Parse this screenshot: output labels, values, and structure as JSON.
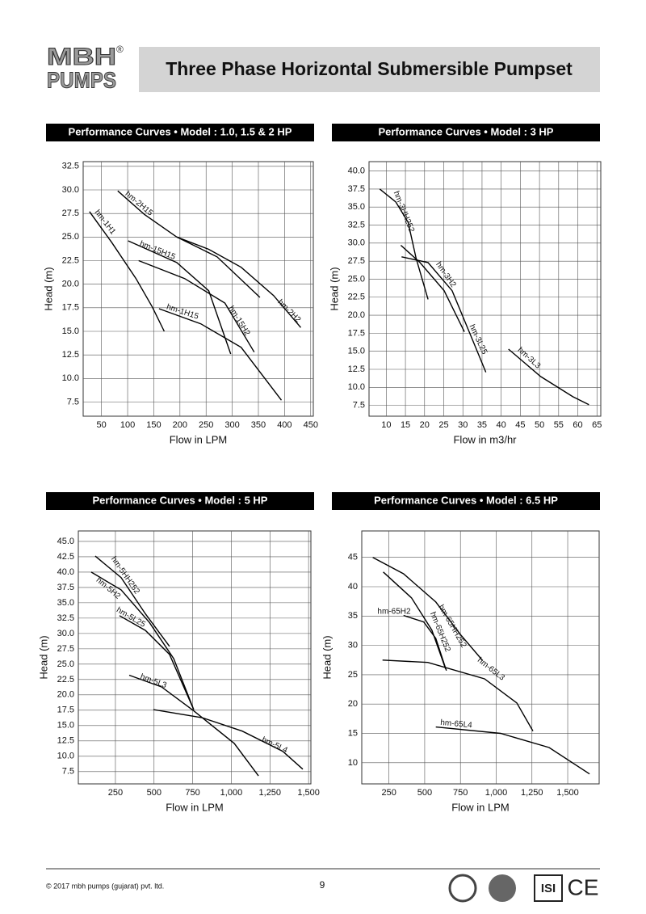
{
  "header": {
    "logo_top": "MBH",
    "logo_bottom": "PUMPS",
    "registered": "®",
    "title": "Three Phase Horizontal Submersible Pumpset"
  },
  "chart_data": [
    {
      "type": "line",
      "title": "Performance Curves • Model : 1.0, 1.5 & 2 HP",
      "x_label": "Flow in LPM",
      "y_label": "Head (m)",
      "grid": true,
      "color": "#000000",
      "xlim": [
        15,
        455
      ],
      "ylim": [
        6,
        33
      ],
      "xticks": [
        50,
        100,
        150,
        200,
        250,
        300,
        350,
        400,
        450
      ],
      "yticks": [
        7.5,
        {
          "value": 10,
          "label": "10.0"
        },
        12.5,
        {
          "value": 15,
          "label": "15.0"
        },
        17.5,
        {
          "value": 20,
          "label": "20.0"
        },
        22.5,
        {
          "value": 25,
          "label": "25.0"
        },
        27.5,
        {
          "value": 30,
          "label": "30.0"
        },
        32.5
      ],
      "series": [
        {
          "name": "hm-1H1",
          "x": [
            27,
            70,
            116,
            147,
            170
          ],
          "values": [
            27.7,
            24.4,
            20.6,
            17.6,
            15.0
          ]
        },
        {
          "name": "hm-2H15",
          "x": [
            81,
            132,
            194,
            271,
            353
          ],
          "values": [
            29.9,
            27.4,
            25.0,
            22.9,
            18.6
          ]
        },
        {
          "name": "hm-2H2",
          "x": [
            194,
            255,
            317,
            379,
            431
          ],
          "values": [
            25.0,
            23.7,
            21.8,
            18.8,
            15.4
          ]
        },
        {
          "name": "hm-15H15",
          "x": [
            101,
            194,
            255,
            297
          ],
          "values": [
            24.6,
            22.3,
            19.3,
            12.6
          ]
        },
        {
          "name": "hm-15H2",
          "x": [
            121,
            209,
            286,
            342
          ],
          "values": [
            22.5,
            20.6,
            18.0,
            12.8
          ]
        },
        {
          "name": "hm-1H15",
          "x": [
            160,
            240,
            317,
            394
          ],
          "values": [
            17.4,
            15.8,
            13.3,
            7.7
          ]
        }
      ]
    },
    {
      "type": "line",
      "title": "Performance Curves • Model : 3 HP",
      "x_label": "Flow in m3/hr",
      "y_label": "Head (m)",
      "grid": true,
      "color": "#000000",
      "xlim": [
        5.5,
        66
      ],
      "ylim": [
        6,
        41.3
      ],
      "xticks": [
        10,
        15,
        20,
        25,
        30,
        35,
        40,
        45,
        50,
        55,
        60,
        65
      ],
      "yticks": [
        7.5,
        {
          "value": 10,
          "label": "10.0"
        },
        12.5,
        {
          "value": 15,
          "label": "15.0"
        },
        17.5,
        {
          "value": 20,
          "label": "20.0"
        },
        22.5,
        {
          "value": 25,
          "label": "25.0"
        },
        27.5,
        {
          "value": 30,
          "label": "30.0"
        },
        32.5,
        {
          "value": 35,
          "label": "35.0"
        },
        37.5,
        {
          "value": 40,
          "label": "40.0"
        }
      ],
      "series": [
        {
          "name": "hm-3HH252",
          "x": [
            8.3,
            12.5,
            15.7,
            17.8,
            20.9
          ],
          "values": [
            37.5,
            35.7,
            32.9,
            27.9,
            22.2
          ]
        },
        {
          "name": "hm-3H2",
          "x": [
            13.8,
            18.8,
            25.1,
            30.4
          ],
          "values": [
            29.7,
            27.3,
            23.4,
            17.7
          ]
        },
        {
          "name": "hm-3L25",
          "x": [
            14.0,
            20.9,
            27.2,
            32.5,
            36.0
          ],
          "values": [
            28.1,
            27.3,
            23.4,
            16.6,
            12.1
          ]
        },
        {
          "name": "hm-3L3",
          "x": [
            41.9,
            50.3,
            58.7,
            62.9
          ],
          "values": [
            15.3,
            11.5,
            8.7,
            7.6
          ]
        }
      ]
    },
    {
      "type": "line",
      "title": "Performance Curves • Model : 5 HP",
      "x_label": "Flow in LPM",
      "y_label": "Head (m)",
      "grid": true,
      "color": "#000000",
      "xlim": [
        10,
        1515
      ],
      "ylim": [
        5.5,
        46.7
      ],
      "xticks": [
        250,
        500,
        750,
        {
          "value": 1000,
          "label": "1,000"
        },
        {
          "value": 1250,
          "label": "1,250"
        },
        {
          "value": 1500,
          "label": "1,500"
        }
      ],
      "yticks": [
        7.5,
        {
          "value": 10,
          "label": "10.0"
        },
        12.5,
        {
          "value": 15,
          "label": "15.0"
        },
        17.5,
        {
          "value": 20,
          "label": "20.0"
        },
        22.5,
        {
          "value": 25,
          "label": "25.0"
        },
        27.5,
        {
          "value": 30,
          "label": "30.0"
        },
        32.5,
        {
          "value": 35,
          "label": "35.0"
        },
        37.5,
        {
          "value": 40,
          "label": "40.0"
        },
        42.5,
        {
          "value": 45,
          "label": "45.0"
        }
      ],
      "series": [
        {
          "name": "hm-5HH252",
          "x": [
            119,
            287,
            444,
            600
          ],
          "values": [
            42.6,
            39.1,
            33.2,
            27.9
          ]
        },
        {
          "name": "hm-5H2",
          "x": [
            93,
            287,
            470,
            627,
            757
          ],
          "values": [
            40.0,
            37.1,
            31.8,
            25.9,
            17.6
          ]
        },
        {
          "name": "hm-5L25",
          "x": [
            276,
            444,
            600,
            757
          ],
          "values": [
            32.9,
            30.5,
            26.6,
            17.6
          ]
        },
        {
          "name": "hm-5L3",
          "x": [
            339,
            548,
            757,
            1019,
            1176
          ],
          "values": [
            23.2,
            21.3,
            17.4,
            12.1,
            6.8
          ]
        },
        {
          "name": "hm-5L4",
          "x": [
            496,
            810,
            1071,
            1333,
            1463
          ],
          "values": [
            17.6,
            16.3,
            14.1,
            10.8,
            7.9
          ]
        }
      ]
    },
    {
      "type": "line",
      "title": "Performance Curves • Model : 6.5 HP",
      "x_label": "Flow in LPM",
      "y_label": "Head (m)",
      "grid": true,
      "color": "#000000",
      "xlim": [
        60,
        1720
      ],
      "ylim": [
        6.4,
        49.5
      ],
      "xticks": [
        250,
        500,
        750,
        {
          "value": 1000,
          "label": "1,000"
        },
        {
          "value": 1250,
          "label": "1,250"
        },
        {
          "value": 1500,
          "label": "1,500"
        }
      ],
      "yticks": [
        10,
        15,
        20,
        25,
        30,
        35,
        40,
        45
      ],
      "series": [
        {
          "name": "hm-65HH252",
          "x": [
            137,
            352,
            578,
            748,
            906
          ],
          "values": [
            45.0,
            42.2,
            37.4,
            31.9,
            27.4
          ]
        },
        {
          "name": "hm-65H252",
          "x": [
            210,
            408,
            550,
            646
          ],
          "values": [
            42.5,
            38.1,
            32.6,
            26.0
          ]
        },
        {
          "name": "hm-65H2",
          "x": [
            352,
            493,
            578,
            652
          ],
          "values": [
            35.1,
            34.0,
            31.2,
            25.7
          ]
        },
        {
          "name": "hm-65L3",
          "x": [
            205,
            522,
            918,
            1144,
            1257
          ],
          "values": [
            27.5,
            27.1,
            24.3,
            20.2,
            15.4
          ]
        },
        {
          "name": "hm-65L4",
          "x": [
            578,
            1031,
            1370,
            1653
          ],
          "values": [
            16.1,
            15.0,
            12.6,
            8.1
          ]
        }
      ]
    }
  ],
  "footer": {
    "copyright": "© 2017 mbh pumps (gujarat) pvt. ltd.",
    "page": "9",
    "isi": "ISI",
    "ce": "CE"
  }
}
